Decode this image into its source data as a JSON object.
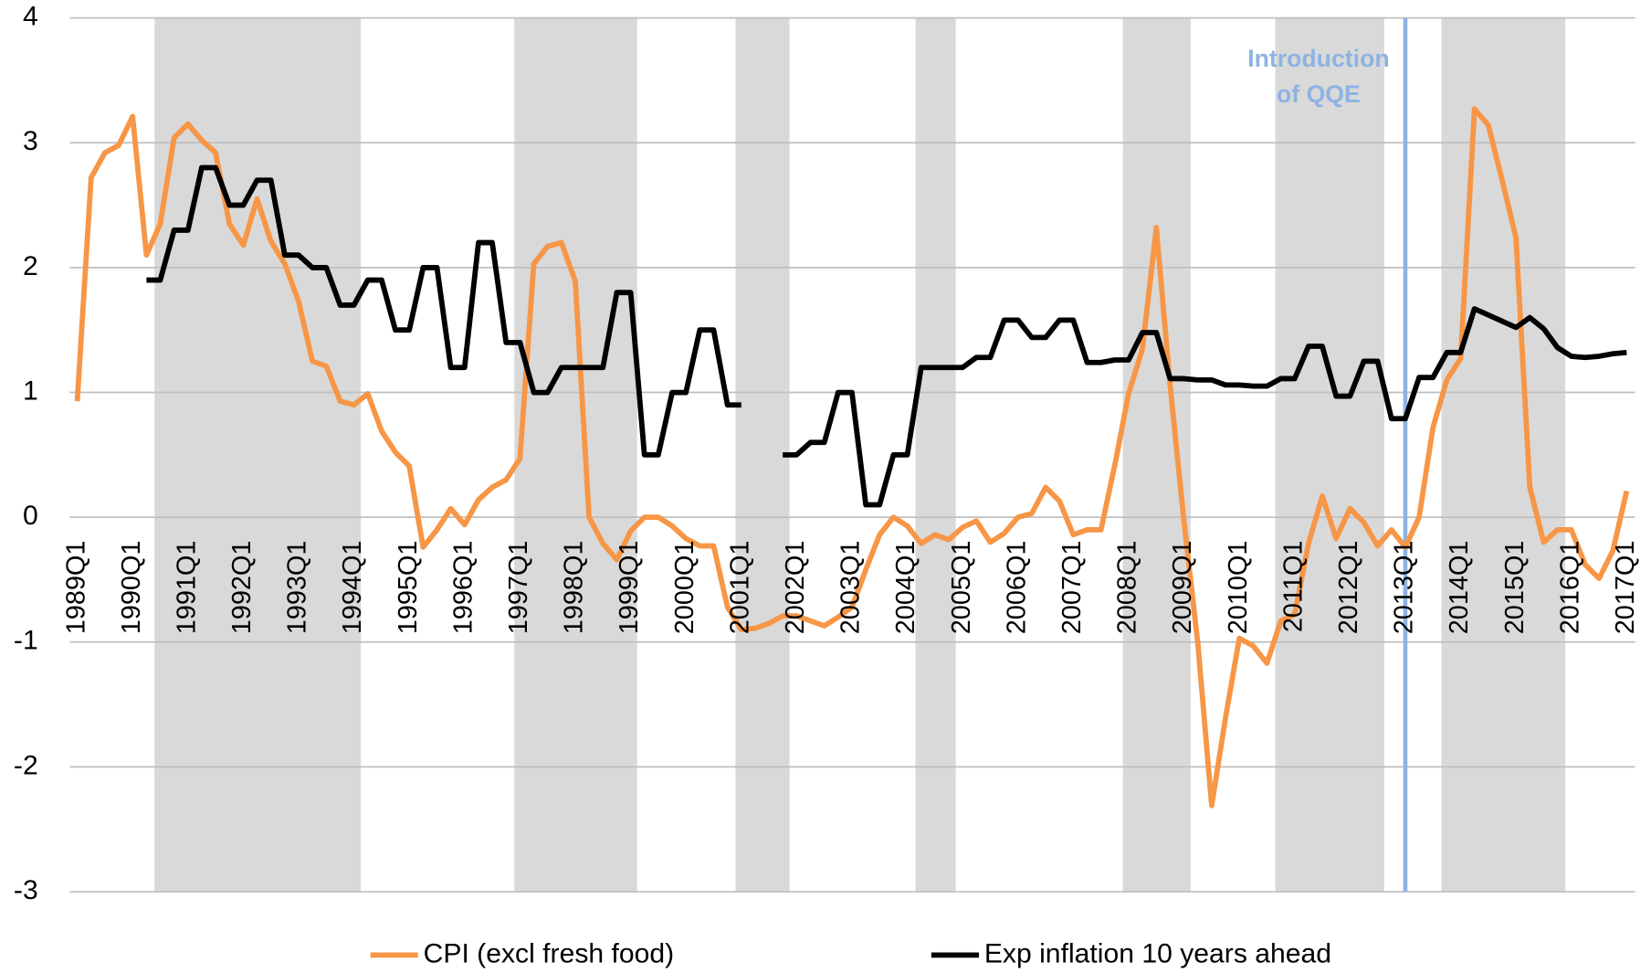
{
  "chart_data": {
    "type": "line",
    "categories": [
      "1989Q1",
      null,
      null,
      null,
      "1990Q1",
      null,
      null,
      null,
      "1991Q1",
      null,
      null,
      null,
      "1992Q1",
      null,
      null,
      null,
      "1993Q1",
      null,
      null,
      null,
      "1994Q1",
      null,
      null,
      null,
      "1995Q1",
      null,
      null,
      null,
      "1996Q1",
      null,
      null,
      null,
      "1997Q1",
      null,
      null,
      null,
      "1998Q1",
      null,
      null,
      null,
      "1999Q1",
      null,
      null,
      null,
      "2000Q1",
      null,
      null,
      null,
      "2001Q1",
      null,
      null,
      null,
      "2002Q1",
      null,
      null,
      null,
      "2003Q1",
      null,
      null,
      null,
      "2004Q1",
      null,
      null,
      null,
      "2005Q1",
      null,
      null,
      null,
      "2006Q1",
      null,
      null,
      null,
      "2007Q1",
      null,
      null,
      null,
      "2008Q1",
      null,
      null,
      null,
      "2009Q1",
      null,
      null,
      null,
      "2010Q1",
      null,
      null,
      null,
      "2011Q1",
      null,
      null,
      null,
      "2012Q1",
      null,
      null,
      null,
      "2013Q1",
      null,
      null,
      null,
      "2014Q1",
      null,
      null,
      null,
      "2015Q1",
      null,
      null,
      null,
      "2016Q1",
      null,
      null,
      null,
      "2017Q1"
    ],
    "series": [
      {
        "name": "CPI (excl fresh food)",
        "color": "#f79646",
        "values": [
          0.93,
          2.72,
          2.92,
          2.98,
          3.21,
          2.1,
          2.35,
          3.04,
          3.15,
          3.02,
          2.92,
          2.35,
          2.18,
          2.55,
          2.21,
          2.03,
          1.73,
          1.25,
          1.21,
          0.93,
          0.9,
          0.99,
          0.69,
          0.52,
          0.41,
          -0.24,
          -0.1,
          0.07,
          -0.06,
          0.14,
          0.24,
          0.3,
          0.47,
          2.03,
          2.17,
          2.2,
          1.89,
          0.0,
          -0.21,
          -0.34,
          -0.11,
          0.0,
          0.0,
          -0.07,
          -0.17,
          -0.23,
          -0.23,
          -0.72,
          -0.9,
          -0.89,
          -0.85,
          -0.79,
          -0.79,
          -0.83,
          -0.87,
          -0.8,
          -0.72,
          -0.42,
          -0.14,
          0.0,
          -0.07,
          -0.21,
          -0.14,
          -0.18,
          -0.08,
          -0.03,
          -0.2,
          -0.13,
          0.0,
          0.03,
          0.24,
          0.13,
          -0.14,
          -0.1,
          -0.1,
          0.42,
          0.99,
          1.35,
          2.32,
          1.06,
          -0.03,
          -1.01,
          -2.31,
          -1.61,
          -0.97,
          -1.03,
          -1.17,
          -0.83,
          -0.78,
          -0.21,
          0.17,
          -0.17,
          0.07,
          -0.04,
          -0.23,
          -0.1,
          -0.24,
          0.0,
          0.72,
          1.1,
          1.27,
          3.27,
          3.14,
          2.7,
          2.24,
          0.24,
          -0.2,
          -0.1,
          -0.1,
          -0.38,
          -0.49,
          -0.27,
          0.21
        ]
      },
      {
        "name": "Exp inflation 10 years ahead",
        "color": "#000000",
        "values": [
          null,
          null,
          null,
          null,
          null,
          1.9,
          1.9,
          2.3,
          2.3,
          2.8,
          2.8,
          2.5,
          2.5,
          2.7,
          2.7,
          2.1,
          2.1,
          2.0,
          2.0,
          1.7,
          1.7,
          1.9,
          1.9,
          1.5,
          1.5,
          2.0,
          2.0,
          1.2,
          1.2,
          2.2,
          2.2,
          1.4,
          1.4,
          1.0,
          1.0,
          1.2,
          1.2,
          1.2,
          1.2,
          1.8,
          1.8,
          0.5,
          0.5,
          1.0,
          1.0,
          1.5,
          1.5,
          0.9,
          0.9,
          null,
          null,
          0.5,
          0.5,
          0.6,
          0.6,
          1.0,
          1.0,
          0.1,
          0.1,
          0.5,
          0.5,
          1.2,
          1.2,
          1.2,
          1.2,
          1.28,
          1.28,
          1.58,
          1.58,
          1.44,
          1.44,
          1.58,
          1.58,
          1.24,
          1.24,
          1.26,
          1.26,
          1.48,
          1.48,
          1.11,
          1.11,
          1.1,
          1.1,
          1.06,
          1.06,
          1.05,
          1.05,
          1.11,
          1.11,
          1.37,
          1.37,
          0.97,
          0.97,
          1.25,
          1.25,
          0.79,
          0.79,
          1.12,
          1.12,
          1.32,
          1.32,
          1.67,
          1.62,
          1.57,
          1.52,
          1.6,
          1.51,
          1.36,
          1.29,
          1.28,
          1.29,
          1.31,
          1.32
        ]
      }
    ],
    "ylim": [
      -3,
      4
    ],
    "yticks": [
      -3,
      -2,
      -1,
      0,
      1,
      2,
      3,
      4
    ],
    "grid": true,
    "annotation": {
      "lines": [
        "Introduction",
        "of QQE"
      ],
      "at": "2013Q1",
      "color": "#8db3e2"
    },
    "legend": "bottom"
  }
}
